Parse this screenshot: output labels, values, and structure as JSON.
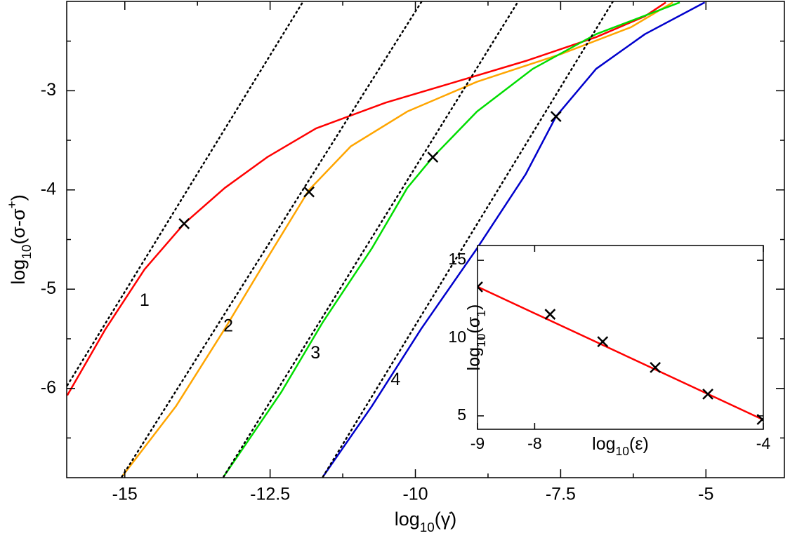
{
  "chart_data": [
    {
      "type": "line",
      "x_label": [
        "log",
        "10",
        "(γ̇)"
      ],
      "y_label": [
        "log",
        "10",
        "(σ-σ",
        "+",
        ")"
      ],
      "xlim": [
        -16,
        -3.65
      ],
      "ylim": [
        -6.9,
        -2.1
      ],
      "xticks": [
        -15,
        -12.5,
        -10,
        -7.5,
        -5
      ],
      "xminorticks": [
        -13.75,
        -11.25,
        -8.75,
        -6.25
      ],
      "yticks": [
        -3,
        -4,
        -5,
        -6
      ],
      "yminorticks": [
        -2.5,
        -3.5,
        -4.5,
        -5.5,
        -6.5
      ],
      "series": [
        {
          "color": "#ff0000",
          "style": "solid",
          "x": [
            -15.99,
            -15.33,
            -14.66,
            -13.98,
            -13.28,
            -12.55,
            -11.71,
            -10.51,
            -9.3,
            -8.1,
            -6.89,
            -6.05,
            -5.69
          ],
          "values": [
            -6.07,
            -5.4,
            -4.8,
            -4.34,
            -3.98,
            -3.67,
            -3.38,
            -3.12,
            -2.91,
            -2.7,
            -2.46,
            -2.25,
            -2.11
          ]
        },
        {
          "color": "#ffa500",
          "style": "solid",
          "x": [
            -15.05,
            -14.12,
            -13.28,
            -12.55,
            -11.83,
            -11.11,
            -10.14,
            -8.94,
            -7.49,
            -6.29,
            -5.57
          ],
          "values": [
            -6.89,
            -6.18,
            -5.4,
            -4.69,
            -4.0,
            -3.56,
            -3.21,
            -2.91,
            -2.63,
            -2.36,
            -2.11
          ]
        },
        {
          "color": "#00dd00",
          "style": "solid",
          "x": [
            -13.3,
            -12.31,
            -11.59,
            -10.75,
            -10.14,
            -9.7,
            -8.94,
            -7.98,
            -6.89,
            -5.45
          ],
          "values": [
            -6.89,
            -6.04,
            -5.33,
            -4.59,
            -3.98,
            -3.67,
            -3.21,
            -2.78,
            -2.43,
            -2.11
          ]
        },
        {
          "color": "#0000cc",
          "style": "solid",
          "x": [
            -11.59,
            -10.75,
            -9.9,
            -8.94,
            -8.1,
            -7.58,
            -6.89,
            -6.05,
            -5.02
          ],
          "values": [
            -6.89,
            -6.18,
            -5.4,
            -4.59,
            -3.84,
            -3.26,
            -2.78,
            -2.43,
            -2.11
          ]
        },
        {
          "color": "#000000",
          "style": "dotted",
          "x": [
            -15.99,
            -11.92
          ],
          "values": [
            -5.97,
            -2.09
          ]
        },
        {
          "color": "#000000",
          "style": "dotted",
          "x": [
            -15.05,
            -9.88
          ],
          "values": [
            -6.89,
            -2.09
          ]
        },
        {
          "color": "#000000",
          "style": "dotted",
          "x": [
            -13.3,
            -8.22
          ],
          "values": [
            -6.89,
            -2.09
          ]
        },
        {
          "color": "#000000",
          "style": "dotted",
          "x": [
            -11.59,
            -6.59
          ],
          "values": [
            -6.89,
            -2.09
          ]
        },
        {
          "color": "#000000",
          "style": "marker",
          "x": [
            -13.98,
            -11.83,
            -9.7,
            -7.58
          ],
          "values": [
            -4.34,
            -4.02,
            -3.67,
            -3.26
          ]
        }
      ],
      "annotations": [
        {
          "text": "1",
          "x": -14.66,
          "y": -5.12
        },
        {
          "text": "2",
          "x": -13.22,
          "y": -5.38
        },
        {
          "text": "3",
          "x": -11.72,
          "y": -5.65
        },
        {
          "text": "4",
          "x": -10.34,
          "y": -5.92
        }
      ]
    },
    {
      "type": "line",
      "x_label": [
        "log",
        "10",
        "(ε)"
      ],
      "y_label": [
        "log",
        "10",
        "(σ",
        "1",
        ")"
      ],
      "xlim": [
        -9,
        -4
      ],
      "ylim": [
        4.14,
        15.95
      ],
      "xticks": [
        -9,
        -8,
        -4
      ],
      "yticks": [
        15,
        10,
        5
      ],
      "series": [
        {
          "color": "#ff0000",
          "style": "solid",
          "x": [
            -9,
            -4
          ],
          "values": [
            13.3,
            4.75
          ]
        },
        {
          "color": "#000000",
          "style": "marker",
          "x": [
            -9,
            -7.73,
            -6.81,
            -5.89,
            -4.97,
            -4.02
          ],
          "values": [
            13.29,
            11.53,
            9.77,
            8.11,
            6.4,
            4.77
          ]
        }
      ]
    }
  ]
}
